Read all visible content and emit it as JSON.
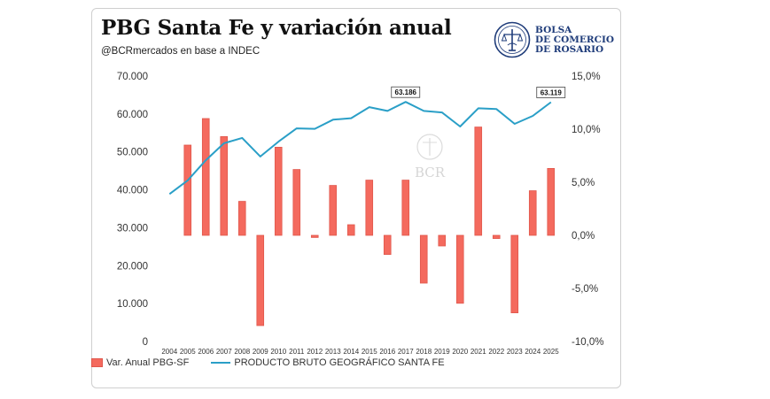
{
  "header": {
    "title": "PBG Santa Fe y variación anual",
    "subtitle": "@BCRmercados en base a INDEC"
  },
  "logo": {
    "line1": "BOLSA",
    "line2": "DE COMERCIO",
    "line3": "DE ROSARIO",
    "icon": "bcr-seal-icon",
    "color": "#1f3c7a"
  },
  "watermark": {
    "text": "BCR"
  },
  "legend": {
    "bar_label": "Var. Anual PBG-SF",
    "line_label": "PRODUCTO BRUTO GEOGRÁFICO SANTA FE"
  },
  "colors": {
    "bar": "#f46a5e",
    "line": "#2a9fc7"
  },
  "chart_data": {
    "type": "bar",
    "categories": [
      "2004",
      "2005",
      "2006",
      "2007",
      "2008",
      "2009",
      "2010",
      "2011",
      "2012",
      "2013",
      "2014",
      "2015",
      "2016",
      "2017",
      "2018",
      "2019",
      "2020",
      "2021",
      "2022",
      "2023",
      "2024",
      "2025"
    ],
    "series": [
      {
        "name": "Var. Anual PBG-SF",
        "type": "bar",
        "axis": "right",
        "values": [
          null,
          8.5,
          11.0,
          9.3,
          3.2,
          -8.5,
          8.3,
          6.2,
          -0.2,
          4.7,
          1.0,
          5.2,
          -1.8,
          5.2,
          -4.5,
          -1.0,
          -6.4,
          10.2,
          -0.3,
          -7.3,
          4.2,
          6.3
        ]
      },
      {
        "name": "PRODUCTO BRUTO GEOGRÁFICO SANTA FE",
        "type": "line",
        "axis": "left",
        "values": [
          38900,
          42500,
          47800,
          52300,
          53700,
          48800,
          52700,
          56200,
          56100,
          58500,
          58900,
          61800,
          60800,
          63186,
          60800,
          60400,
          56700,
          61500,
          61300,
          57400,
          59500,
          63119
        ]
      }
    ],
    "annotations": [
      {
        "x": "2017",
        "text": "63.186"
      },
      {
        "x": "2025",
        "text": "63.119"
      }
    ],
    "y_left": {
      "ylim": [
        0,
        70000
      ],
      "ticks": [
        0,
        10000,
        20000,
        30000,
        40000,
        50000,
        60000,
        70000
      ],
      "tick_labels": [
        "0",
        "10.000",
        "20.000",
        "30.000",
        "40.000",
        "50.000",
        "60.000",
        "70.000"
      ]
    },
    "y_right": {
      "ylim": [
        -10,
        15
      ],
      "ticks": [
        -10,
        -5,
        0,
        5,
        10,
        15
      ],
      "tick_labels": [
        "-10,0%",
        "-5,0%",
        "0,0%",
        "5,0%",
        "10,0%",
        "15,0%"
      ]
    },
    "grid": false,
    "legend_position": "bottom"
  }
}
